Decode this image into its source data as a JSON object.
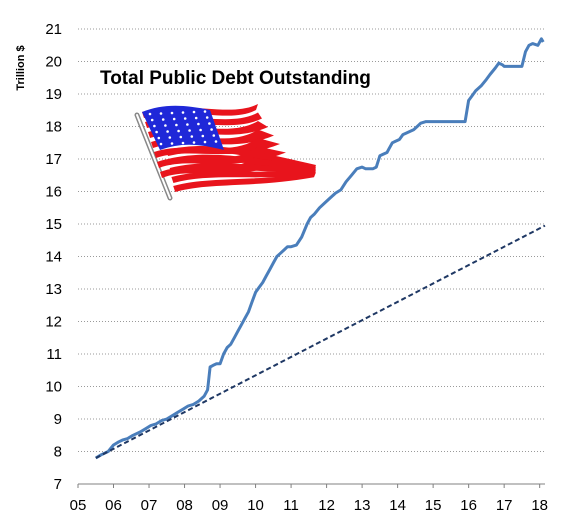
{
  "chart_data": {
    "type": "line",
    "title": "Total Public Debt Outstanding",
    "ylabel": "Trillion $",
    "xlabel": "",
    "x_ticks": [
      "05",
      "06",
      "07",
      "08",
      "09",
      "10",
      "11",
      "12",
      "13",
      "14",
      "15",
      "16",
      "17",
      "18"
    ],
    "y_ticks": [
      7,
      8,
      9,
      10,
      11,
      12,
      13,
      14,
      15,
      16,
      17,
      18,
      19,
      20,
      21
    ],
    "xlim": [
      5,
      18.15
    ],
    "ylim": [
      7,
      21
    ],
    "grid": "horizontal dotted",
    "legend": "none",
    "series": [
      {
        "style": "solid",
        "color": "#4a7ebb",
        "x": [
          5.5,
          5.65,
          5.85,
          6.0,
          6.15,
          6.25,
          6.4,
          6.55,
          6.75,
          6.9,
          7.05,
          7.2,
          7.35,
          7.5,
          7.65,
          7.8,
          7.95,
          8.1,
          8.25,
          8.4,
          8.55,
          8.65,
          8.72,
          8.8,
          8.9,
          9.0,
          9.1,
          9.2,
          9.3,
          9.4,
          9.5,
          9.6,
          9.7,
          9.8,
          9.9,
          10.0,
          10.1,
          10.2,
          10.3,
          10.4,
          10.5,
          10.6,
          10.7,
          10.8,
          10.9,
          11.0,
          11.15,
          11.3,
          11.45,
          11.55,
          11.65,
          11.8,
          11.95,
          12.1,
          12.25,
          12.4,
          12.55,
          12.7,
          12.85,
          13.0,
          13.1,
          13.2,
          13.3,
          13.4,
          13.5,
          13.7,
          13.75,
          13.85,
          13.95,
          14.05,
          14.15,
          14.25,
          14.35,
          14.45,
          14.55,
          14.65,
          14.8,
          14.95,
          15.0,
          15.1,
          15.5,
          15.9,
          16.0,
          16.1,
          16.2,
          16.35,
          16.5,
          16.6,
          16.75,
          16.85,
          16.95,
          17.0,
          17.1,
          17.5,
          17.6,
          17.7,
          17.8,
          17.95,
          18.05,
          18.1
        ],
        "y": [
          7.8,
          7.9,
          8.0,
          8.2,
          8.3,
          8.35,
          8.4,
          8.5,
          8.6,
          8.7,
          8.8,
          8.85,
          8.95,
          9.0,
          9.1,
          9.2,
          9.3,
          9.4,
          9.45,
          9.55,
          9.7,
          9.9,
          10.6,
          10.65,
          10.7,
          10.7,
          11.0,
          11.2,
          11.3,
          11.5,
          11.7,
          11.9,
          12.1,
          12.3,
          12.6,
          12.9,
          13.05,
          13.2,
          13.4,
          13.6,
          13.8,
          14.0,
          14.1,
          14.2,
          14.3,
          14.3,
          14.35,
          14.6,
          15.0,
          15.2,
          15.3,
          15.5,
          15.65,
          15.8,
          15.95,
          16.05,
          16.3,
          16.5,
          16.7,
          16.75,
          16.7,
          16.7,
          16.7,
          16.75,
          17.1,
          17.2,
          17.3,
          17.5,
          17.55,
          17.6,
          17.75,
          17.8,
          17.85,
          17.9,
          18.0,
          18.1,
          18.15,
          18.15,
          18.15,
          18.15,
          18.15,
          18.15,
          18.8,
          18.95,
          19.1,
          19.25,
          19.45,
          19.6,
          19.8,
          19.95,
          19.9,
          19.85,
          19.85,
          19.85,
          20.3,
          20.5,
          20.55,
          20.5,
          20.7,
          20.6
        ]
      },
      {
        "style": "dashed",
        "color": "#1f3864",
        "x": [
          5.5,
          18.15
        ],
        "y": [
          7.8,
          14.95
        ]
      }
    ]
  },
  "flag_colors": {
    "blue": "#1f28d8",
    "red": "#e8141c",
    "white": "#ffffff"
  },
  "flag_icon": "us-flag-icon"
}
